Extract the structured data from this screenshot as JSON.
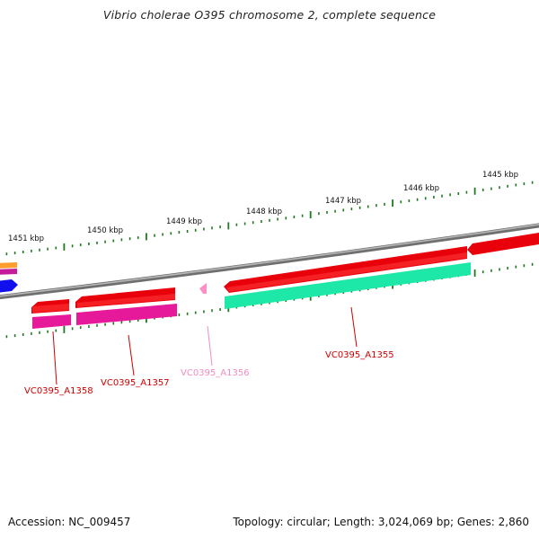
{
  "title": "Vibrio cholerae O395 chromosome 2, complete sequence",
  "footer": {
    "accession": "Accession: NC_009457",
    "summary": "Topology: circular; Length: 3,024,069 bp; Genes: 2,860"
  },
  "colors": {
    "backbone": "#8c8c8c",
    "tick": "#1f7a1f",
    "gene_red": "#e8000b",
    "gene_magenta": "#e6199a",
    "gene_pink": "#ff8fc8",
    "gene_green": "#1ee8a8",
    "gene_blue": "#1010ee",
    "gene_orange": "#ff9d2e",
    "label_red": "#d10000",
    "label_pink": "#f08cc0"
  },
  "scale_labels": [
    "1451 kbp",
    "1450 kbp",
    "1449 kbp",
    "1448 kbp",
    "1447 kbp",
    "1446 kbp",
    "1445 kbp"
  ],
  "gene_labels": [
    {
      "text": "VC0395_A1358",
      "color": "red"
    },
    {
      "text": "VC0395_A1357",
      "color": "red"
    },
    {
      "text": "VC0395_A1356",
      "color": "pink"
    },
    {
      "text": "VC0395_A1355",
      "color": "red"
    }
  ]
}
